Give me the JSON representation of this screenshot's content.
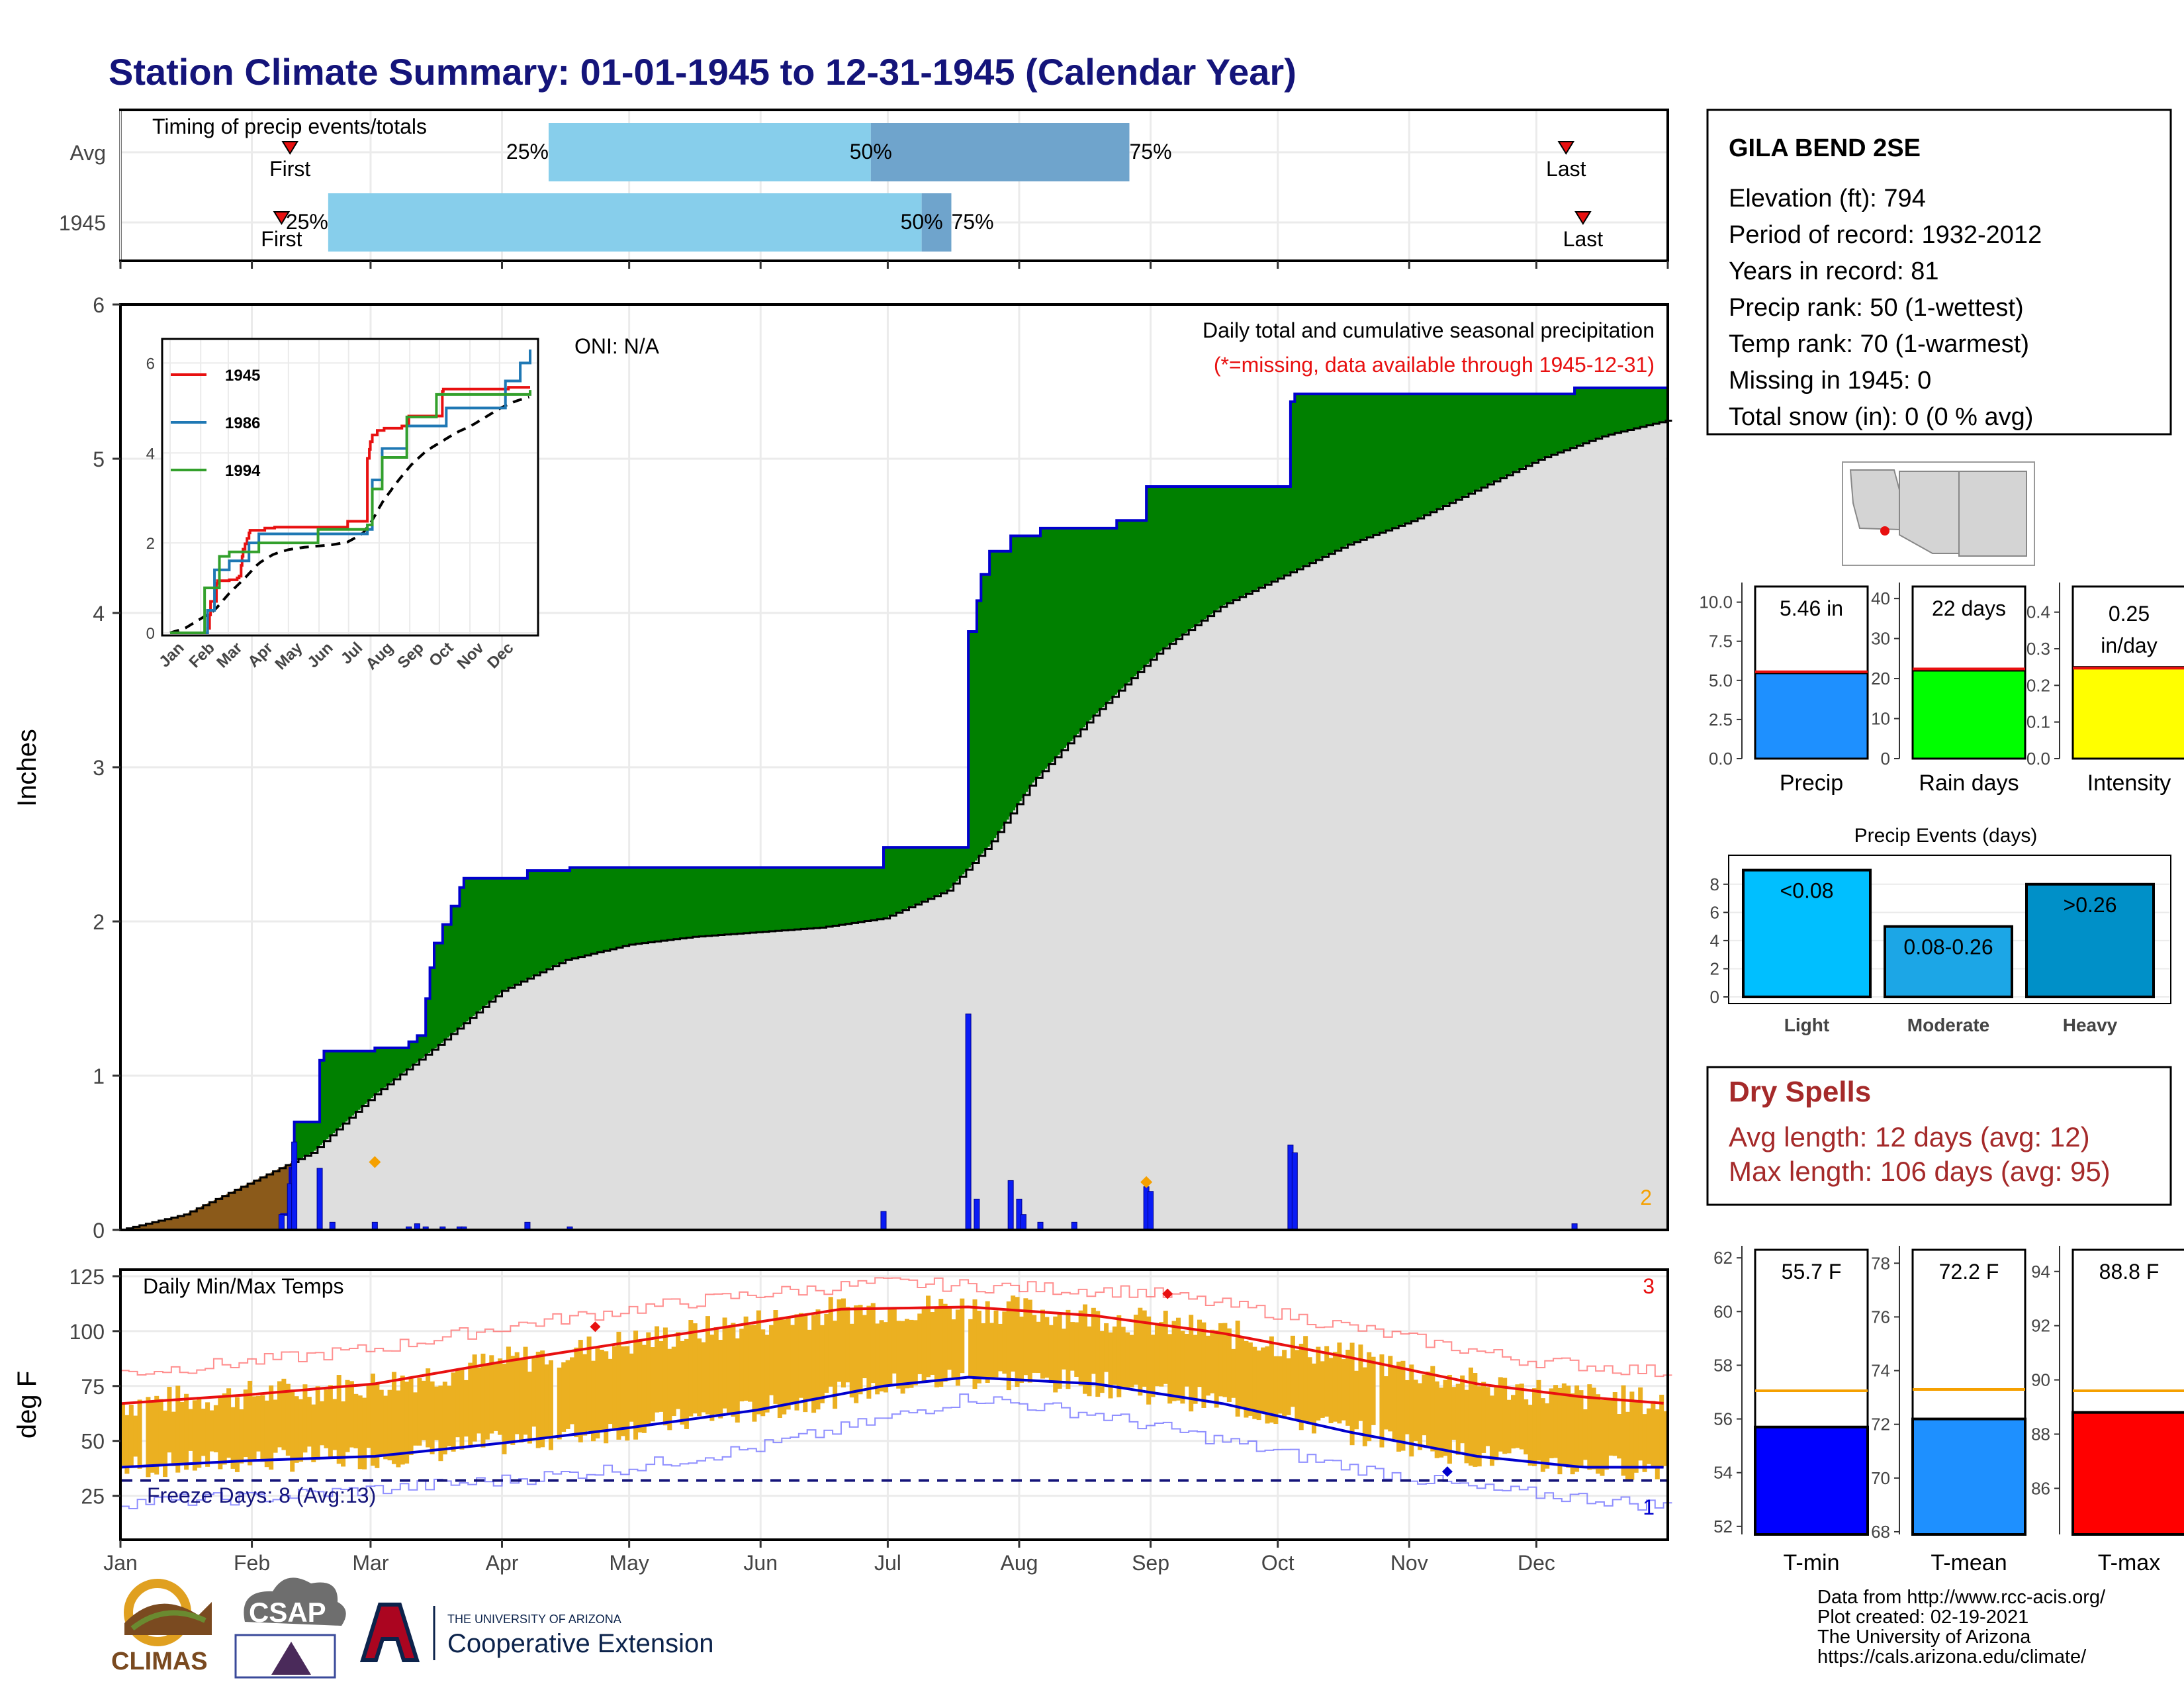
{
  "title": "Station Climate Summary: 01-01-1945 to 12-31-1945 (Calendar Year)",
  "colors": {
    "title": "#14147a",
    "green": "#008000",
    "gray_fill": "#dedede",
    "brown": "#8b5a1a",
    "blue_bar": "#0a1cf5",
    "orange": "#f5a000",
    "red": "#e81010",
    "navy": "#0000cd",
    "light_blue": "#87ceeb",
    "mid_blue": "#6fa4cc",
    "temp_bar": "#ebb021",
    "dry_red": "#a52a2a"
  },
  "timing": {
    "label": "Timing of precip events/totals",
    "rows": [
      {
        "name": "Avg",
        "first": 40,
        "p25": 101,
        "p50": 177,
        "p75": 238,
        "last": 341,
        "first_label": "First",
        "last_label": "Last",
        "p25_label": "25%",
        "p50_label": "50%",
        "p75_label": "75%"
      },
      {
        "name": "1945",
        "first": 38,
        "p25": 49,
        "p50": 189,
        "p75": 196,
        "last": 345,
        "first_label": "First",
        "last_label": "Last",
        "p25_label": "25%",
        "p50_label": "50%",
        "p75_label": "75%"
      }
    ]
  },
  "precip_panel": {
    "ylabel": "Inches",
    "note1": "Daily total and cumulative seasonal precipitation",
    "note2": "(*=missing, data available through 1945-12-31)",
    "oni": "ONI: N/A",
    "corner_count": "2"
  },
  "inset": {
    "y_ticks": [
      "0",
      "2",
      "4",
      "6"
    ],
    "months": [
      "Jan",
      "Feb",
      "Mar",
      "Apr",
      "May",
      "Jun",
      "Jul",
      "Aug",
      "Sep",
      "Oct",
      "Nov",
      "Dec"
    ],
    "legend": [
      "1945",
      "1986",
      "1994"
    ]
  },
  "temp_panel": {
    "ylabel": "deg F",
    "label": "Daily Min/Max Temps",
    "freeze": "Freeze Days: 8 (Avg:13)",
    "corner_max": "3",
    "corner_min": "1"
  },
  "months": [
    "Jan",
    "Feb",
    "Mar",
    "Apr",
    "May",
    "Jun",
    "Jul",
    "Aug",
    "Sep",
    "Oct",
    "Nov",
    "Dec"
  ],
  "station": {
    "name": "GILA BEND 2SE",
    "lines": [
      "Elevation (ft): 794",
      "Period of record: 1932-2012",
      "Years in record: 81",
      "Precip rank: 50 (1-wettest)",
      "Temp rank: 70 (1-warmest)",
      "Missing in 1945: 0",
      "Total snow (in): 0 (0 % avg)"
    ]
  },
  "mini_bars": [
    {
      "label": "Precip",
      "value_label": "5.46 in",
      "value": 5.46,
      "avg": 5.55,
      "ymax": 11,
      "ticks": [
        "0.0",
        "2.5",
        "5.0",
        "7.5",
        "10.0"
      ],
      "tick_values": [
        0,
        2.5,
        5,
        7.5,
        10
      ],
      "color": "#1e90ff"
    },
    {
      "label": "Rain days",
      "value_label": "22 days",
      "value": 22,
      "avg": 22.4,
      "ymax": 43,
      "ticks": [
        "0",
        "10",
        "20",
        "30",
        "40"
      ],
      "tick_values": [
        0,
        10,
        20,
        30,
        40
      ],
      "color": "#00ff00"
    },
    {
      "label": "Intensity",
      "value_label": "0.25",
      "value_label2": "in/day",
      "value": 0.25,
      "avg": 0.247,
      "ymax": 0.47,
      "ticks": [
        "0.0",
        "0.1",
        "0.2",
        "0.3",
        "0.4"
      ],
      "tick_values": [
        0,
        0.1,
        0.2,
        0.3,
        0.4
      ],
      "color": "#ffff00"
    }
  ],
  "precip_events": {
    "title": "Precip Events (days)",
    "categories": [
      "Light",
      "Moderate",
      "Heavy"
    ],
    "values": [
      9,
      5,
      8
    ],
    "labels": [
      "<0.08",
      "0.08-0.26",
      ">0.26"
    ],
    "ticks": [
      "0",
      "2",
      "4",
      "6",
      "8"
    ],
    "colors": [
      "#00bfff",
      "#1ca6e6",
      "#0090c8"
    ]
  },
  "dry_spells": {
    "title": "Dry Spells",
    "avg": "Avg length: 12 days (avg: 12)",
    "max": "Max length: 106 days (avg: 95)"
  },
  "temp_bars": [
    {
      "label": "T-min",
      "value_label": "55.7 F",
      "value": 55.7,
      "avg": 57.05,
      "ymin": 51.7,
      "ymax": 62.3,
      "ticks": [
        "52",
        "54",
        "56",
        "58",
        "60",
        "62"
      ],
      "tick_values": [
        52,
        54,
        56,
        58,
        60,
        62
      ],
      "color": "#0000ff"
    },
    {
      "label": "T-mean",
      "value_label": "72.2 F",
      "value": 72.2,
      "avg": 73.3,
      "ymin": 67.9,
      "ymax": 78.5,
      "ticks": [
        "68",
        "70",
        "72",
        "74",
        "76",
        "78"
      ],
      "tick_values": [
        68,
        70,
        72,
        74,
        76,
        78
      ],
      "color": "#1e90ff"
    },
    {
      "label": "T-max",
      "value_label": "88.8 F",
      "value": 88.8,
      "avg": 89.6,
      "ymin": 84.3,
      "ymax": 94.8,
      "ticks": [
        "86",
        "88",
        "90",
        "92",
        "94"
      ],
      "tick_values": [
        86,
        88,
        90,
        92,
        94
      ],
      "color": "#ff0000"
    }
  ],
  "footer": [
    "Data from http://www.rcc-acis.org/",
    "Plot created: 02-19-2021",
    "The University of Arizona",
    "https://cals.arizona.edu/climate/"
  ],
  "logos": {
    "climas": "CLIMAS",
    "csap": "CSAP",
    "ua_small": "THE UNIVERSITY OF ARIZONA",
    "ua_big": "Cooperative Extension"
  },
  "chart_data": [
    {
      "type": "area",
      "title": "Daily total and cumulative seasonal precipitation",
      "ylabel": "Inches",
      "ylim": [
        0,
        6
      ],
      "y_ticks": [
        0,
        1,
        2,
        3,
        4,
        5,
        6
      ],
      "x_months": [
        "Jan",
        "Feb",
        "Mar",
        "Apr",
        "May",
        "Jun",
        "Jul",
        "Aug",
        "Sep",
        "Oct",
        "Nov",
        "Dec"
      ],
      "daily_precip_1945": [
        [
          38,
          0.1
        ],
        [
          40,
          0.3
        ],
        [
          41,
          0.57
        ],
        [
          47,
          0.4
        ],
        [
          50,
          0.05
        ],
        [
          60,
          0.05
        ],
        [
          68,
          0.02
        ],
        [
          70,
          0.04
        ],
        [
          72,
          0.02
        ],
        [
          76,
          0.02
        ],
        [
          80,
          0.02
        ],
        [
          81,
          0.02
        ],
        [
          96,
          0.05
        ],
        [
          106,
          0.02
        ],
        [
          180,
          0.12
        ],
        [
          200,
          1.4
        ],
        [
          202,
          0.2
        ],
        [
          210,
          0.32
        ],
        [
          212,
          0.2
        ],
        [
          213,
          0.1
        ],
        [
          217,
          0.05
        ],
        [
          225,
          0.05
        ],
        [
          242,
          0.28
        ],
        [
          243,
          0.25
        ],
        [
          276,
          0.55
        ],
        [
          277,
          0.5
        ],
        [
          343,
          0.04
        ]
      ],
      "cumulative_1945": [
        [
          0,
          0
        ],
        [
          38,
          0.1
        ],
        [
          40,
          0.4
        ],
        [
          41,
          0.7
        ],
        [
          47,
          1.1
        ],
        [
          48,
          1.16
        ],
        [
          60,
          1.18
        ],
        [
          68,
          1.22
        ],
        [
          70,
          1.26
        ],
        [
          72,
          1.5
        ],
        [
          73,
          1.7
        ],
        [
          74,
          1.86
        ],
        [
          76,
          1.98
        ],
        [
          78,
          2.1
        ],
        [
          80,
          2.22
        ],
        [
          81,
          2.28
        ],
        [
          96,
          2.33
        ],
        [
          106,
          2.35
        ],
        [
          180,
          2.48
        ],
        [
          200,
          3.88
        ],
        [
          202,
          4.08
        ],
        [
          203,
          4.25
        ],
        [
          205,
          4.4
        ],
        [
          210,
          4.5
        ],
        [
          217,
          4.55
        ],
        [
          235,
          4.6
        ],
        [
          242,
          4.82
        ],
        [
          276,
          5.37
        ],
        [
          277,
          5.42
        ],
        [
          343,
          5.46
        ],
        [
          365,
          5.46
        ]
      ],
      "cumulative_avg": [
        [
          0,
          0
        ],
        [
          15,
          0.1
        ],
        [
          30,
          0.3
        ],
        [
          45,
          0.5
        ],
        [
          60,
          0.88
        ],
        [
          75,
          1.2
        ],
        [
          90,
          1.55
        ],
        [
          105,
          1.75
        ],
        [
          120,
          1.85
        ],
        [
          135,
          1.9
        ],
        [
          150,
          1.93
        ],
        [
          165,
          1.96
        ],
        [
          180,
          2.02
        ],
        [
          195,
          2.2
        ],
        [
          205,
          2.5
        ],
        [
          215,
          2.9
        ],
        [
          230,
          3.35
        ],
        [
          245,
          3.75
        ],
        [
          260,
          4.05
        ],
        [
          275,
          4.25
        ],
        [
          290,
          4.45
        ],
        [
          305,
          4.6
        ],
        [
          320,
          4.8
        ],
        [
          335,
          5.0
        ],
        [
          350,
          5.15
        ],
        [
          365,
          5.25
        ]
      ],
      "diamonds": [
        [
          60,
          0.44
        ],
        [
          242,
          0.31
        ]
      ]
    },
    {
      "type": "line",
      "title": "Daily Min/Max Temps",
      "ylabel": "deg F",
      "ylim": [
        5,
        128
      ],
      "y_ticks": [
        25,
        50,
        75,
        100,
        125
      ],
      "freeze_line": 32,
      "normal_max": [
        [
          0,
          67
        ],
        [
          30,
          71
        ],
        [
          60,
          76
        ],
        [
          90,
          86
        ],
        [
          120,
          95
        ],
        [
          150,
          104
        ],
        [
          170,
          110
        ],
        [
          200,
          111
        ],
        [
          230,
          107
        ],
        [
          260,
          99
        ],
        [
          290,
          88
        ],
        [
          320,
          76
        ],
        [
          345,
          70
        ],
        [
          365,
          67
        ]
      ],
      "normal_min": [
        [
          0,
          38
        ],
        [
          30,
          41
        ],
        [
          60,
          43
        ],
        [
          90,
          49
        ],
        [
          120,
          56
        ],
        [
          150,
          64
        ],
        [
          180,
          75
        ],
        [
          200,
          79
        ],
        [
          230,
          76
        ],
        [
          260,
          67
        ],
        [
          290,
          54
        ],
        [
          320,
          43
        ],
        [
          345,
          38
        ],
        [
          365,
          38
        ]
      ],
      "record_max": [
        [
          0,
          81
        ],
        [
          30,
          86
        ],
        [
          60,
          92
        ],
        [
          90,
          102
        ],
        [
          120,
          110
        ],
        [
          150,
          117
        ],
        [
          180,
          122
        ],
        [
          210,
          120
        ],
        [
          240,
          118
        ],
        [
          270,
          109
        ],
        [
          300,
          98
        ],
        [
          330,
          87
        ],
        [
          365,
          81
        ]
      ],
      "record_min": [
        [
          0,
          22
        ],
        [
          30,
          24
        ],
        [
          60,
          28
        ],
        [
          90,
          32
        ],
        [
          120,
          38
        ],
        [
          150,
          47
        ],
        [
          180,
          60
        ],
        [
          200,
          70
        ],
        [
          230,
          62
        ],
        [
          260,
          50
        ],
        [
          290,
          38
        ],
        [
          320,
          28
        ],
        [
          345,
          24
        ],
        [
          365,
          20
        ]
      ]
    }
  ]
}
